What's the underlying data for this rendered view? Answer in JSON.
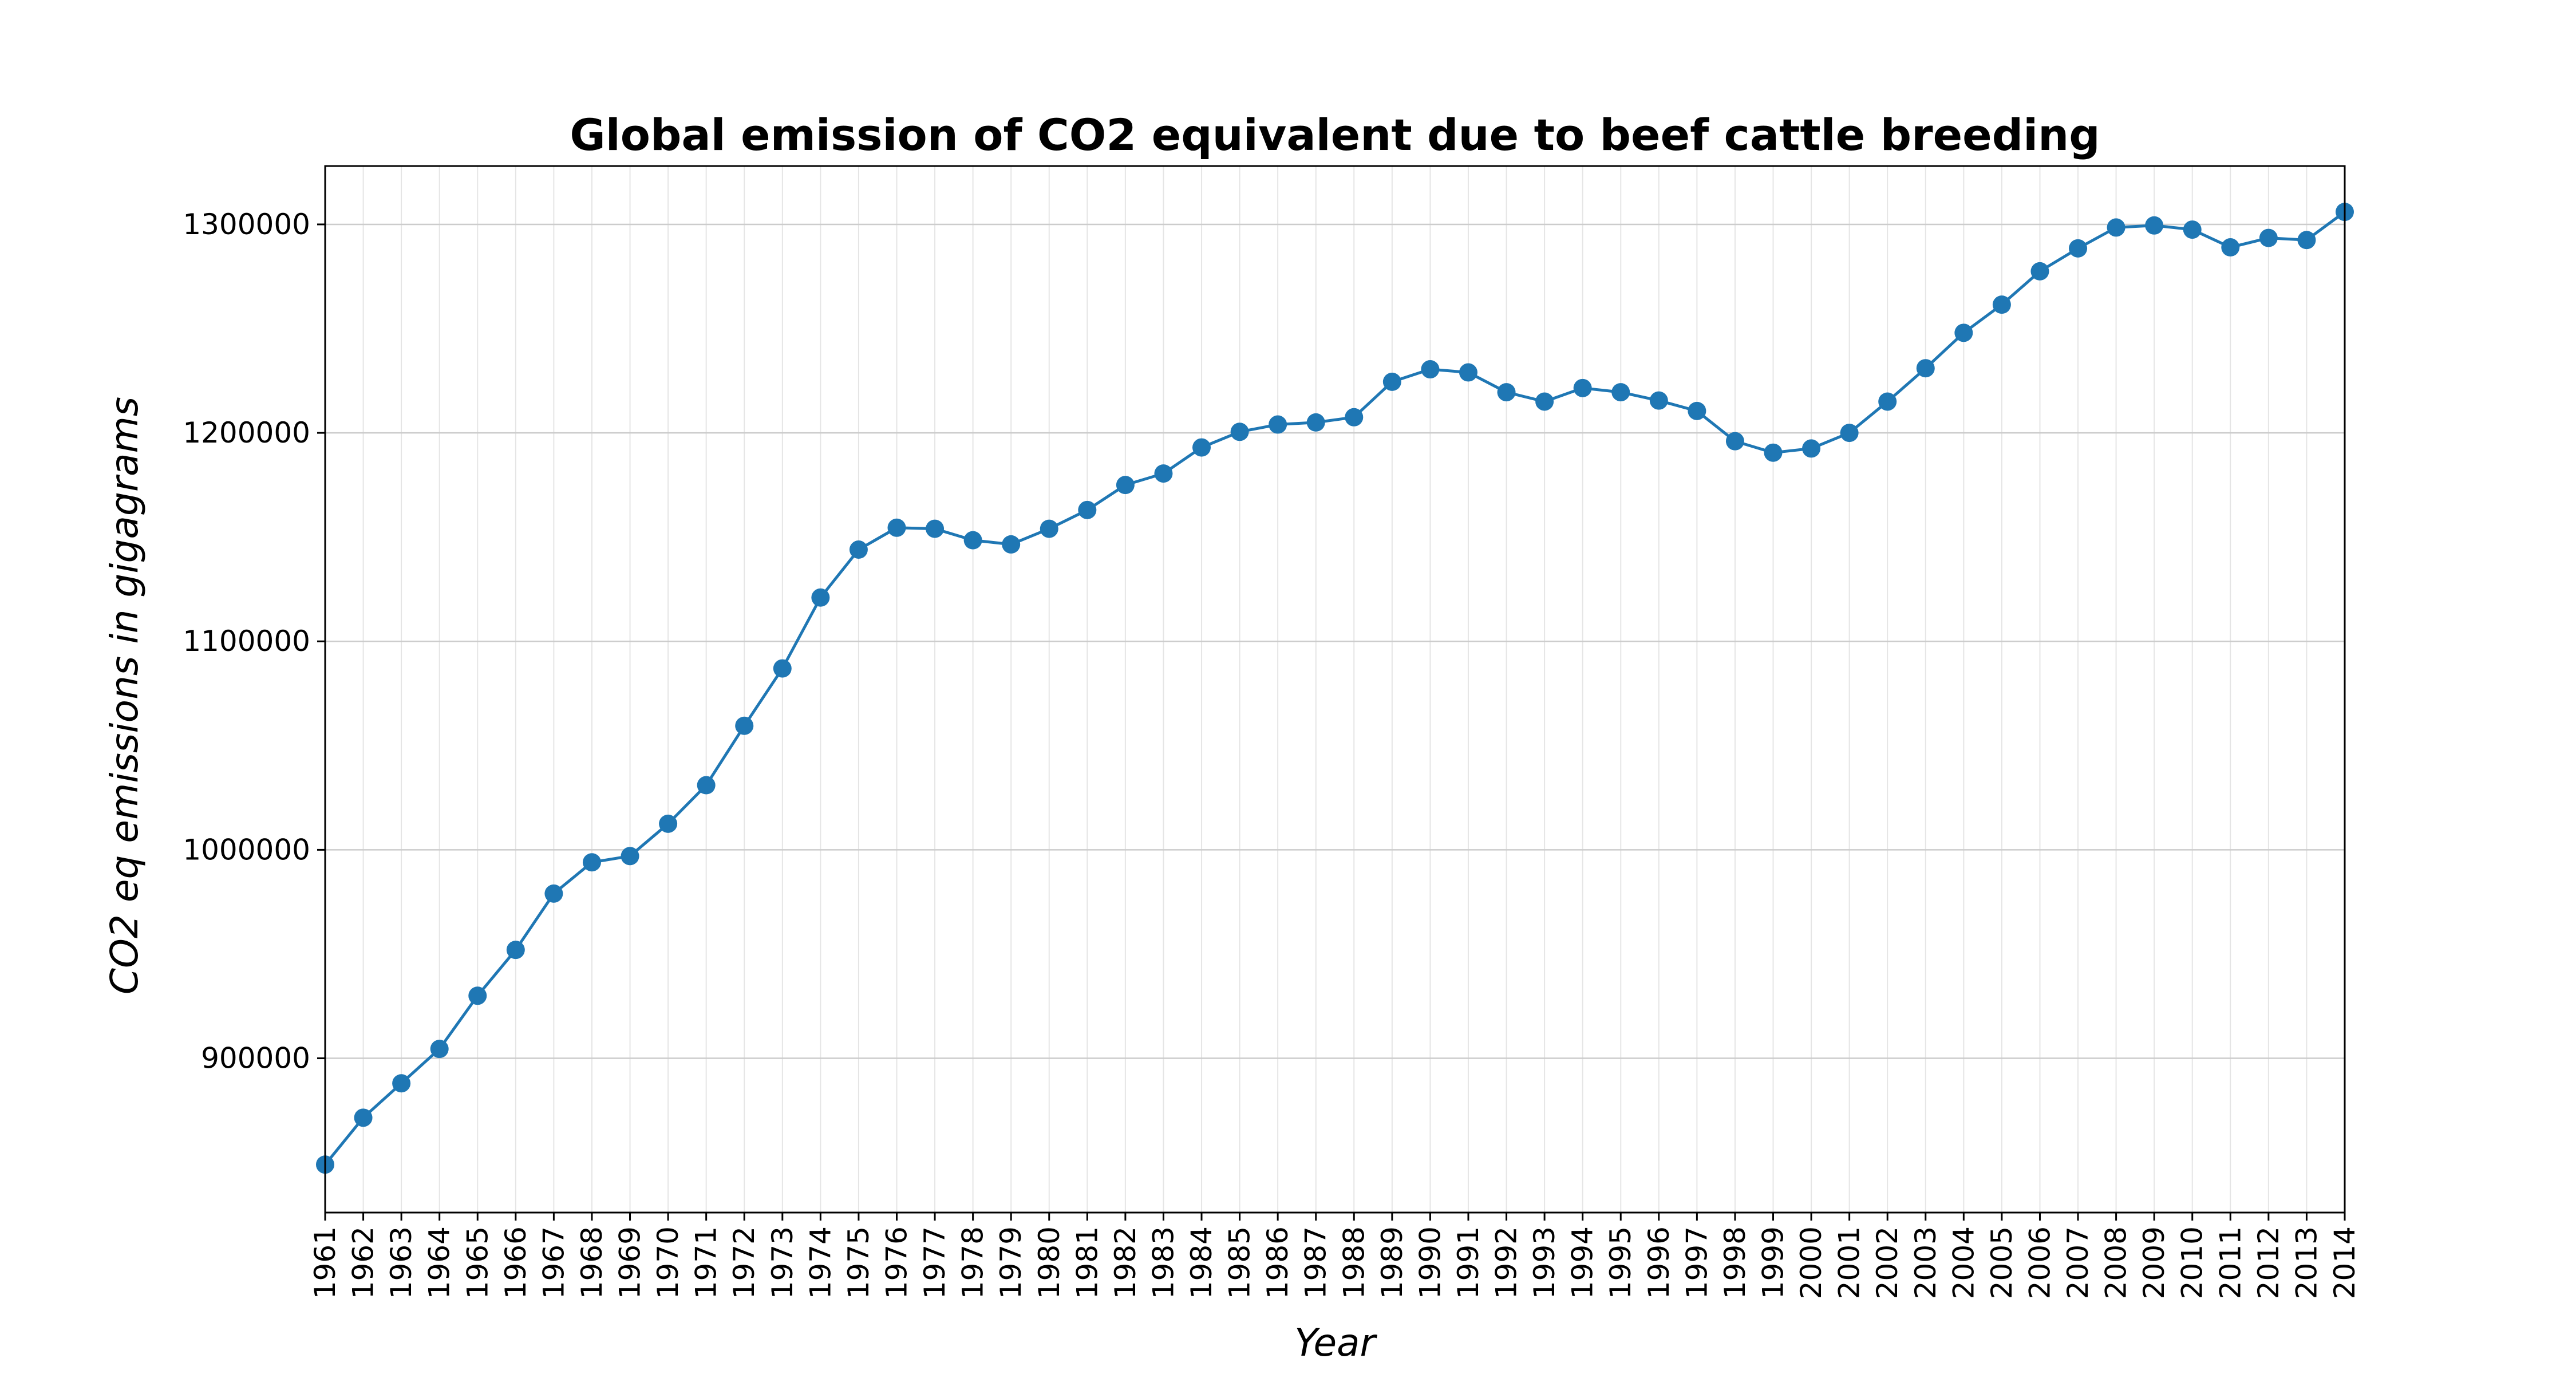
{
  "chart_data": {
    "type": "line",
    "title": "Global emission of CO2 equivalent due to beef cattle breeding",
    "xlabel": "Year",
    "ylabel": "CO2 eq emissions in gigagrams",
    "x": [
      "1961",
      "1962",
      "1963",
      "1964",
      "1965",
      "1966",
      "1967",
      "1968",
      "1969",
      "1970",
      "1971",
      "1972",
      "1973",
      "1974",
      "1975",
      "1976",
      "1977",
      "1978",
      "1979",
      "1980",
      "1981",
      "1982",
      "1983",
      "1984",
      "1985",
      "1986",
      "1987",
      "1988",
      "1989",
      "1990",
      "1991",
      "1992",
      "1993",
      "1994",
      "1995",
      "1996",
      "1997",
      "1998",
      "1999",
      "2000",
      "2001",
      "2002",
      "2003",
      "2004",
      "2005",
      "2006",
      "2007",
      "2008",
      "2009",
      "2010",
      "2011",
      "2012",
      "2013",
      "2014"
    ],
    "values": [
      849000,
      871500,
      888000,
      904500,
      930000,
      952000,
      979000,
      994000,
      997000,
      1012500,
      1031000,
      1059500,
      1087000,
      1121000,
      1144000,
      1154500,
      1154000,
      1148500,
      1146500,
      1154000,
      1163000,
      1175000,
      1180500,
      1193000,
      1200500,
      1204000,
      1205000,
      1207500,
      1224500,
      1230500,
      1229000,
      1219500,
      1215000,
      1221500,
      1219500,
      1215500,
      1210500,
      1196000,
      1190500,
      1192500,
      1200000,
      1215000,
      1231000,
      1248000,
      1261500,
      1277500,
      1288500,
      1298500,
      1299500,
      1297500,
      1289000,
      1293500,
      1292500,
      1306000
    ],
    "yticks": [
      900000,
      1000000,
      1100000,
      1200000,
      1300000
    ],
    "ytick_labels": [
      "900000",
      "1000000",
      "1100000",
      "1200000",
      "1300000"
    ],
    "ylim": [
      826000,
      1328000
    ],
    "xlim": [
      "1961",
      "2014"
    ],
    "grid": true,
    "line_color": "#1f77b4",
    "grid_color": "#cccccc"
  }
}
